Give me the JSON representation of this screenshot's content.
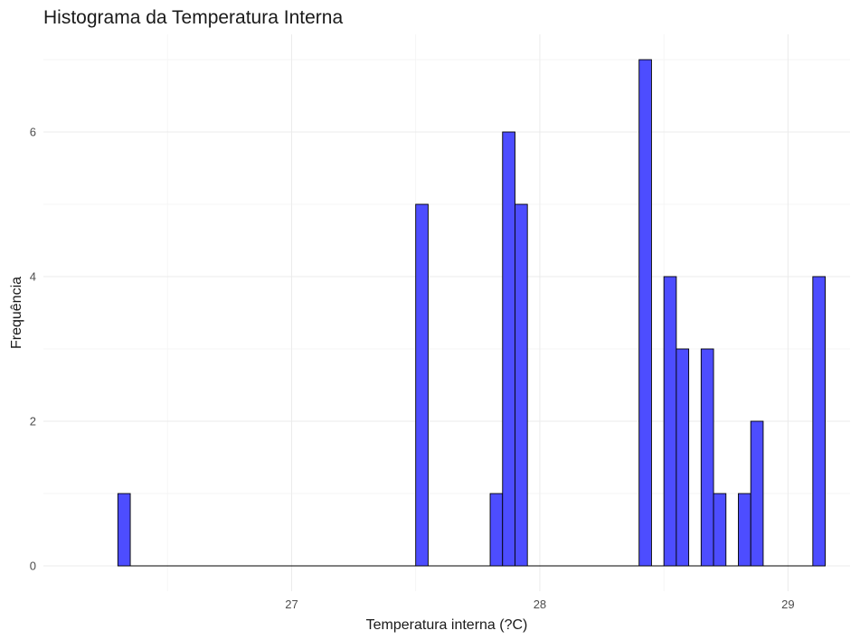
{
  "chart_data": {
    "type": "bar",
    "title": "Histograma da Temperatura Interna",
    "xlabel": "Temperatura interna (?C)",
    "ylabel": "Frequência",
    "xlim": [
      26.0,
      29.25
    ],
    "ylim": [
      -0.35,
      7.35
    ],
    "x_ticks": [
      27,
      28,
      29
    ],
    "x_tick_labels": [
      "27",
      "28",
      "29"
    ],
    "y_ticks": [
      0,
      2,
      4,
      6
    ],
    "y_tick_labels": [
      "0",
      "2",
      "4",
      "6"
    ],
    "grid": true,
    "bin_width": 0.05,
    "bins": [
      {
        "x0": 26.3,
        "x1": 26.35,
        "count": 1
      },
      {
        "x0": 27.5,
        "x1": 27.55,
        "count": 5
      },
      {
        "x0": 27.8,
        "x1": 27.85,
        "count": 1
      },
      {
        "x0": 27.85,
        "x1": 27.9,
        "count": 6
      },
      {
        "x0": 27.9,
        "x1": 27.95,
        "count": 5
      },
      {
        "x0": 28.4,
        "x1": 28.45,
        "count": 7
      },
      {
        "x0": 28.5,
        "x1": 28.55,
        "count": 4
      },
      {
        "x0": 28.55,
        "x1": 28.6,
        "count": 3
      },
      {
        "x0": 28.65,
        "x1": 28.7,
        "count": 3
      },
      {
        "x0": 28.7,
        "x1": 28.75,
        "count": 1
      },
      {
        "x0": 28.8,
        "x1": 28.85,
        "count": 1
      },
      {
        "x0": 28.85,
        "x1": 28.9,
        "count": 2
      },
      {
        "x0": 29.1,
        "x1": 29.15,
        "count": 4
      }
    ],
    "baseline_range": [
      26.3,
      29.15
    ],
    "bar_fill": "#4d4dff",
    "bar_outline": "#000000"
  }
}
